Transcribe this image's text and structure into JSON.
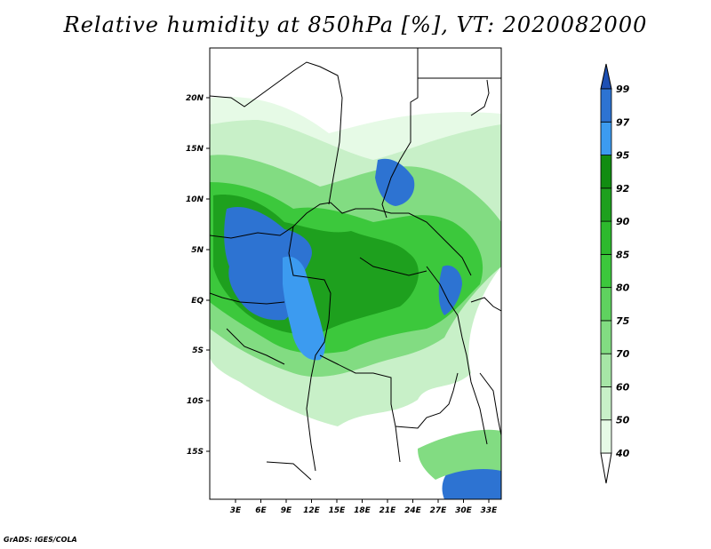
{
  "title": "Relative humidity at 850hPa [%], VT: 2020082000",
  "credit": "GrADS: IGES/COLA",
  "map": {
    "lat_labels": [
      "20N",
      "15N",
      "10N",
      "5N",
      "EQ",
      "5S",
      "10S",
      "15S"
    ],
    "lon_labels": [
      "3E",
      "6E",
      "9E",
      "12E",
      "15E",
      "18E",
      "21E",
      "24E",
      "27E",
      "30E",
      "33E"
    ]
  },
  "colorbar": {
    "levels": [
      "40",
      "50",
      "60",
      "70",
      "75",
      "80",
      "85",
      "90",
      "92",
      "95",
      "97",
      "99"
    ],
    "colors": [
      "#ffffff",
      "#e6fae6",
      "#c8f0c8",
      "#a6e6a6",
      "#82dc82",
      "#5fd25f",
      "#3cc83c",
      "#2db92d",
      "#1ea01e",
      "#118c11",
      "#3c9bf0",
      "#2d73d2",
      "#1e50b4"
    ]
  },
  "palette": {
    "green_light": "#e6fae6",
    "green_mid": "#82dc82",
    "green_dark": "#1ea01e",
    "blue": "#2d73d2"
  }
}
